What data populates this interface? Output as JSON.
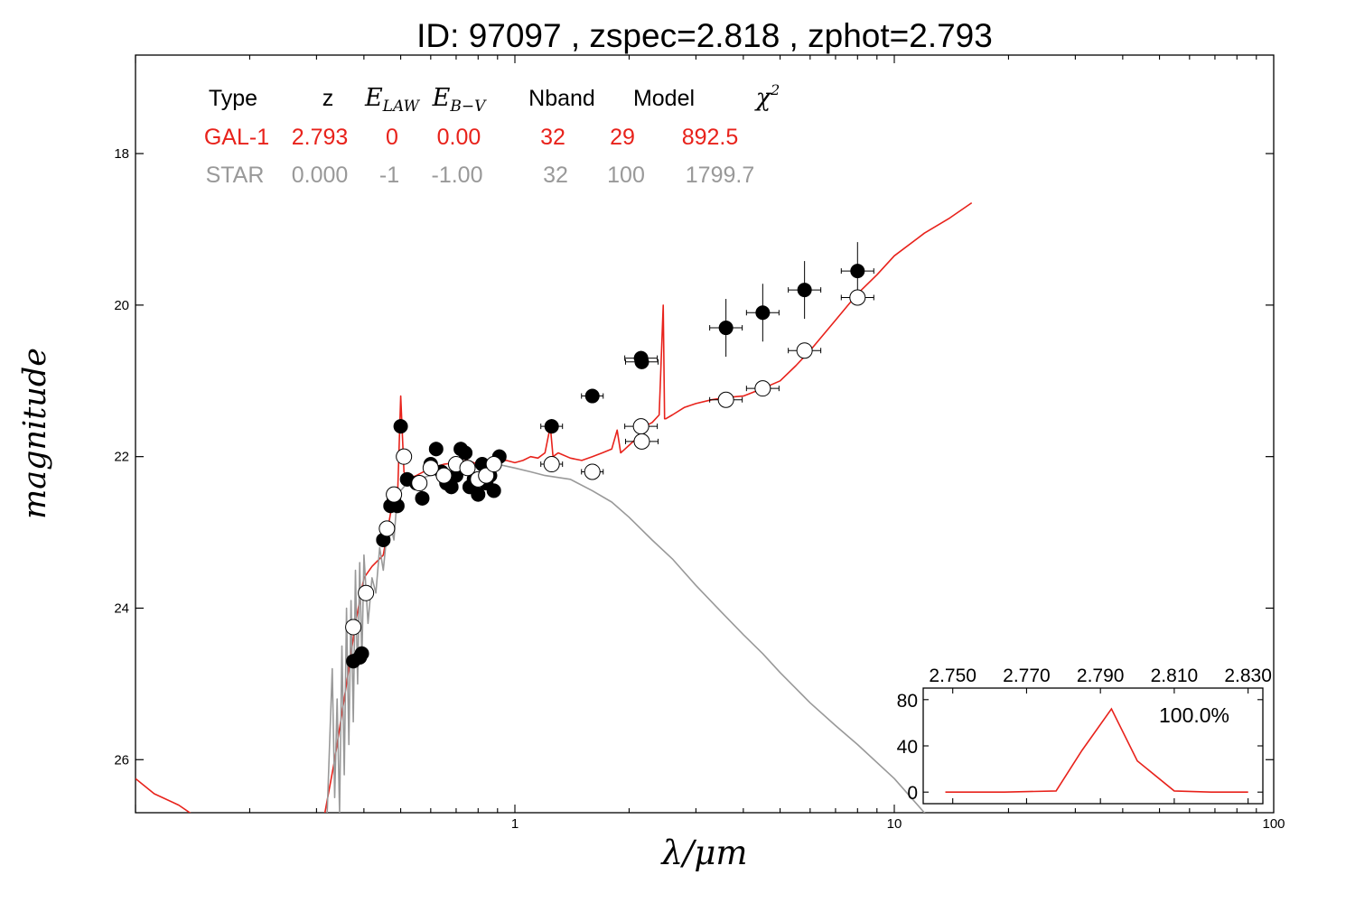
{
  "title": "ID:  97097 , zspec=2.818 , zphot=2.793",
  "colors": {
    "galaxy": "#e8221b",
    "star": "#999999",
    "axis": "#000000"
  },
  "table": {
    "headers": [
      "Type",
      "z",
      "E",
      "E",
      "Nband",
      "Model",
      "χ"
    ],
    "header_subscripts": [
      "",
      "",
      "LAW",
      "B−V",
      "",
      "",
      ""
    ],
    "header_superscripts": [
      "",
      "",
      "",
      "",
      "",
      "",
      "2"
    ],
    "rows": [
      {
        "name": "galaxy",
        "cells": [
          "GAL-1",
          "2.793",
          "0",
          "0.00",
          "32",
          "29",
          "892.5"
        ]
      },
      {
        "name": "star",
        "cells": [
          "STAR",
          "0.000",
          "-1",
          "-1.00",
          "32",
          "100",
          "1799.7"
        ]
      }
    ]
  },
  "chart_data": [
    {
      "type": "scatter",
      "title": "ID:  97097 , zspec=2.818 , zphot=2.793",
      "xlabel": "λ/μm",
      "ylabel": "magnitude",
      "xscale": "log",
      "xlim": [
        0.1,
        100
      ],
      "ylim": [
        26.7,
        16.7
      ],
      "y_inverted": true,
      "grid": false,
      "xticks": [
        {
          "value": 1,
          "label": "1"
        },
        {
          "value": 10,
          "label": "10"
        },
        {
          "value": 100,
          "label": "100"
        }
      ],
      "yticks": [
        {
          "value": 18,
          "label": "18"
        },
        {
          "value": 20,
          "label": "20"
        },
        {
          "value": 22,
          "label": "22"
        },
        {
          "value": 24,
          "label": "24"
        },
        {
          "value": 26,
          "label": "26"
        }
      ],
      "series": [
        {
          "kind": "line",
          "color": "#e8221b",
          "x": [
            0.1,
            0.112,
            0.13,
            0.17,
            0.25,
            0.3,
            0.335,
            0.36,
            0.38,
            0.4,
            0.42,
            0.45,
            0.47,
            0.48,
            0.49,
            0.5,
            0.51,
            0.52,
            0.55,
            0.6,
            0.65,
            0.7,
            0.75,
            0.8,
            0.85,
            0.9,
            0.95,
            1.0,
            1.05,
            1.1,
            1.15,
            1.2,
            1.24,
            1.26,
            1.3,
            1.4,
            1.5,
            1.6,
            1.7,
            1.8,
            1.86,
            1.9,
            1.95,
            2.0,
            2.05,
            2.1,
            2.2,
            2.3,
            2.4,
            2.46,
            2.48,
            2.5,
            2.6,
            2.8,
            3.0,
            3.3,
            3.6,
            4.0,
            4.5,
            5.0,
            5.5,
            6.0,
            7.0,
            8.0,
            9.0,
            10.0,
            12.0,
            14.0,
            16.0
          ],
          "y": [
            26.25,
            26.45,
            26.6,
            27.0,
            27.5,
            27.3,
            26.0,
            25.0,
            24.2,
            23.6,
            23.45,
            23.3,
            22.75,
            22.5,
            22.6,
            21.2,
            22.2,
            22.3,
            22.25,
            22.15,
            22.1,
            22.08,
            22.05,
            22.1,
            22.15,
            22.05,
            22.05,
            22.08,
            22.05,
            22.0,
            22.02,
            21.95,
            21.6,
            22.0,
            21.95,
            22.02,
            22.05,
            22.0,
            21.95,
            21.9,
            21.65,
            21.95,
            21.9,
            21.85,
            21.8,
            21.75,
            21.6,
            21.55,
            21.45,
            20.0,
            21.5,
            21.5,
            21.45,
            21.35,
            21.3,
            21.25,
            21.22,
            21.2,
            21.1,
            21.0,
            20.8,
            20.6,
            20.2,
            19.85,
            19.6,
            19.35,
            19.05,
            18.85,
            18.65
          ]
        },
        {
          "kind": "line",
          "color": "#999999",
          "x": [
            0.32,
            0.33,
            0.335,
            0.34,
            0.345,
            0.35,
            0.355,
            0.36,
            0.365,
            0.37,
            0.375,
            0.38,
            0.385,
            0.39,
            0.395,
            0.4,
            0.41,
            0.42,
            0.43,
            0.44,
            0.45,
            0.46,
            0.47,
            0.48,
            0.49,
            0.5,
            0.52,
            0.55,
            0.6,
            0.65,
            0.7,
            0.75,
            0.8,
            0.9,
            1.0,
            1.1,
            1.2,
            1.4,
            1.6,
            1.8,
            2.0,
            2.3,
            2.6,
            3.0,
            3.5,
            4.0,
            4.5,
            5.0,
            6.0,
            7.0,
            8.0,
            10.0,
            12.0,
            14.0
          ],
          "y": [
            26.7,
            24.8,
            26.5,
            25.2,
            26.7,
            24.5,
            26.2,
            24.0,
            25.8,
            23.9,
            25.5,
            23.5,
            25.0,
            23.4,
            24.7,
            23.3,
            24.2,
            23.6,
            23.8,
            23.2,
            23.5,
            23.0,
            22.9,
            23.1,
            22.5,
            22.45,
            22.35,
            22.3,
            22.25,
            22.2,
            22.15,
            22.12,
            22.1,
            22.1,
            22.15,
            22.2,
            22.25,
            22.3,
            22.45,
            22.6,
            22.8,
            23.1,
            23.35,
            23.7,
            24.05,
            24.35,
            24.6,
            24.85,
            25.25,
            25.55,
            25.8,
            26.25,
            26.7,
            27.0
          ]
        },
        {
          "kind": "points",
          "style": "filled",
          "color": "#000000",
          "x": [
            0.375,
            0.39,
            0.395,
            0.45,
            0.47,
            0.48,
            0.49,
            0.5,
            0.52,
            0.55,
            0.57,
            0.6,
            0.62,
            0.64,
            0.66,
            0.68,
            0.7,
            0.72,
            0.74,
            0.76,
            0.78,
            0.8,
            0.82,
            0.84,
            0.86,
            0.88,
            0.91,
            1.25,
            1.6,
            2.15,
            2.16,
            3.6,
            4.5,
            5.8,
            8.0
          ],
          "y": [
            24.7,
            24.65,
            24.6,
            23.1,
            22.65,
            22.55,
            22.65,
            21.6,
            22.3,
            22.35,
            22.55,
            22.1,
            21.9,
            22.2,
            22.35,
            22.4,
            22.25,
            21.9,
            21.95,
            22.4,
            22.3,
            22.5,
            22.1,
            22.35,
            22.25,
            22.45,
            22.0,
            21.6,
            21.2,
            20.7,
            20.75,
            20.3,
            20.1,
            19.8,
            19.55
          ]
        },
        {
          "kind": "points",
          "style": "open",
          "color": "#000000",
          "x": [
            0.375,
            0.405,
            0.46,
            0.48,
            0.51,
            0.56,
            0.6,
            0.65,
            0.7,
            0.75,
            0.8,
            0.84,
            0.88,
            1.25,
            1.6,
            2.15,
            2.16,
            3.6,
            4.5,
            5.8,
            8.0
          ],
          "y": [
            24.25,
            23.8,
            22.95,
            22.5,
            22.0,
            22.35,
            22.15,
            22.25,
            22.1,
            22.15,
            22.3,
            22.25,
            22.1,
            22.1,
            22.2,
            21.6,
            21.8,
            21.25,
            21.1,
            20.6,
            19.9
          ]
        }
      ]
    },
    {
      "type": "line",
      "title": "",
      "xlim": [
        2.742,
        2.834
      ],
      "ylim": [
        -10,
        90
      ],
      "xticks": [
        {
          "value": 2.75,
          "label": "2.750"
        },
        {
          "value": 2.77,
          "label": "2.770"
        },
        {
          "value": 2.79,
          "label": "2.790"
        },
        {
          "value": 2.81,
          "label": "2.810"
        },
        {
          "value": 2.83,
          "label": "2.830"
        }
      ],
      "yticks": [
        {
          "value": 0,
          "label": "0"
        },
        {
          "value": 40,
          "label": "40"
        },
        {
          "value": 80,
          "label": "80"
        }
      ],
      "annotation": "100.0%",
      "series": [
        {
          "color": "#e8221b",
          "x": [
            2.748,
            2.764,
            2.778,
            2.785,
            2.793,
            2.8,
            2.81,
            2.82,
            2.83
          ],
          "y": [
            0,
            0,
            1,
            36,
            72,
            27,
            1,
            0,
            0
          ]
        }
      ]
    }
  ]
}
